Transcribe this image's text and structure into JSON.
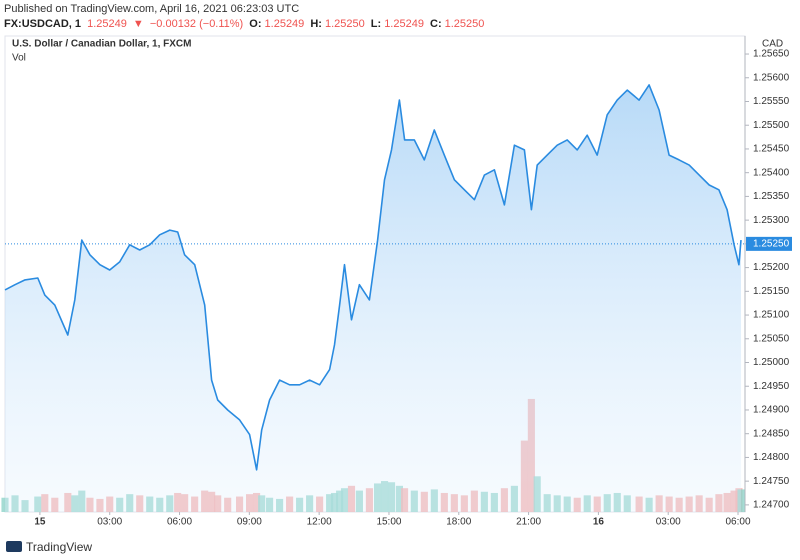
{
  "published": "Published on TradingView.com, April 16, 2021 06:23:03 UTC",
  "symbol_line": {
    "symbol": "FX:USDCAD, 1",
    "last": "1.25249",
    "arrow": "▼",
    "change": "−0.00132 (−0.11%)",
    "o_label": "O:",
    "o": "1.25249",
    "h_label": "H:",
    "h": "1.25250",
    "l_label": "L:",
    "l": "1.25249",
    "c_label": "C:",
    "c": "1.25250"
  },
  "footer": "TradingView",
  "chart_data": {
    "type": "area",
    "title": "U.S. Dollar / Canadian Dollar, 1, FXCM",
    "volume_label": "Vol",
    "currency": "CAD",
    "x": [
      -1.5,
      -1.07,
      -0.64,
      -0.09,
      0.21,
      0.64,
      1.2,
      1.5,
      1.8,
      2.15,
      2.58,
      3.0,
      3.43,
      3.86,
      4.29,
      4.72,
      5.15,
      5.58,
      5.92,
      6.22,
      6.65,
      7.08,
      7.38,
      7.64,
      8.07,
      8.58,
      9.01,
      9.31,
      9.53,
      9.87,
      10.3,
      10.73,
      11.16,
      11.59,
      12.02,
      12.45,
      12.66,
      12.88,
      13.09,
      13.39,
      13.73,
      14.16,
      14.51,
      14.81,
      15.11,
      15.45,
      15.67,
      16.09,
      16.52,
      16.95,
      17.38,
      17.81,
      18.24,
      18.67,
      19.1,
      19.53,
      19.96,
      20.39,
      20.82,
      21.12,
      21.37,
      21.8,
      22.23,
      22.66,
      23.09,
      23.52,
      23.95,
      24.38,
      24.81,
      25.24,
      25.75,
      26.18,
      26.61,
      27.04,
      27.47,
      27.9,
      28.33,
      28.76,
      29.18,
      29.53,
      29.83,
      30.04,
      30.13
    ],
    "series": [
      {
        "name": "USDCAD",
        "color": "#2a8be0",
        "values": [
          1.25153,
          1.25164,
          1.25174,
          1.25178,
          1.25142,
          1.25121,
          1.25058,
          1.25132,
          1.25258,
          1.25227,
          1.25206,
          1.25195,
          1.25212,
          1.25248,
          1.25237,
          1.25248,
          1.25269,
          1.25279,
          1.25275,
          1.25227,
          1.25206,
          1.25121,
          1.24963,
          1.24921,
          1.249,
          1.24879,
          1.24848,
          1.24774,
          1.24858,
          1.24921,
          1.24963,
          1.24953,
          1.24953,
          1.24963,
          1.24953,
          1.24985,
          1.25037,
          1.25121,
          1.25206,
          1.2509,
          1.25164,
          1.25132,
          1.25258,
          1.25385,
          1.25448,
          1.25553,
          1.25469,
          1.25469,
          1.25427,
          1.2549,
          1.25437,
          1.25385,
          1.25364,
          1.25343,
          1.25395,
          1.25406,
          1.25332,
          1.25458,
          1.25448,
          1.25322,
          1.25416,
          1.25437,
          1.25458,
          1.25469,
          1.25448,
          1.25479,
          1.25437,
          1.25522,
          1.25553,
          1.25574,
          1.25553,
          1.25585,
          1.25532,
          1.25437,
          1.25427,
          1.25416,
          1.25395,
          1.25374,
          1.25364,
          1.25322,
          1.25248,
          1.25206,
          1.25258
        ]
      },
      {
        "name": "Vol",
        "axis": "y2",
        "up_color": "#8fd3c9",
        "down_color": "#f4a9a7",
        "values": [
          12,
          14,
          10,
          13,
          15,
          12,
          16,
          14,
          18,
          12,
          11,
          13,
          12,
          15,
          14,
          13,
          12,
          14,
          16,
          15,
          13,
          18,
          17,
          14,
          12,
          13,
          15,
          16,
          14,
          12,
          11,
          13,
          12,
          14,
          13,
          15,
          16,
          18,
          20,
          22,
          18,
          20,
          24,
          26,
          25,
          22,
          20,
          18,
          17,
          19,
          16,
          15,
          14,
          18,
          17,
          16,
          20,
          22,
          60,
          95,
          30,
          15,
          14,
          13,
          12,
          14,
          13,
          15,
          16,
          14,
          13,
          12,
          14,
          13,
          12,
          13,
          14,
          12,
          15,
          16,
          18,
          20,
          19
        ]
      }
    ],
    "xlim": [
      -1.5,
      30.3
    ],
    "xticks": [
      {
        "value": 0,
        "label": "15"
      },
      {
        "value": 3,
        "label": "03:00"
      },
      {
        "value": 6,
        "label": "06:00"
      },
      {
        "value": 9,
        "label": "09:00"
      },
      {
        "value": 12,
        "label": "12:00"
      },
      {
        "value": 15,
        "label": "15:00"
      },
      {
        "value": 18,
        "label": "18:00"
      },
      {
        "value": 21,
        "label": "21:00"
      },
      {
        "value": 24,
        "label": "16"
      },
      {
        "value": 27,
        "label": "03:00"
      },
      {
        "value": 30,
        "label": "06:00"
      }
    ],
    "ylim": [
      1.24685,
      1.25688
    ],
    "yticks": [
      {
        "value": 1.2565,
        "label": "1.25650"
      },
      {
        "value": 1.256,
        "label": "1.25600"
      },
      {
        "value": 1.2555,
        "label": "1.25550"
      },
      {
        "value": 1.255,
        "label": "1.25500"
      },
      {
        "value": 1.2545,
        "label": "1.25450"
      },
      {
        "value": 1.254,
        "label": "1.25400"
      },
      {
        "value": 1.2535,
        "label": "1.25350"
      },
      {
        "value": 1.253,
        "label": "1.25300"
      },
      {
        "value": 1.2525,
        "label": "1.25250"
      },
      {
        "value": 1.252,
        "label": "1.25200"
      },
      {
        "value": 1.2515,
        "label": "1.25150"
      },
      {
        "value": 1.251,
        "label": "1.25100"
      },
      {
        "value": 1.2505,
        "label": "1.25050"
      },
      {
        "value": 1.25,
        "label": "1.25000"
      },
      {
        "value": 1.2495,
        "label": "1.24950"
      },
      {
        "value": 1.249,
        "label": "1.24900"
      },
      {
        "value": 1.2485,
        "label": "1.24850"
      },
      {
        "value": 1.248,
        "label": "1.24800"
      },
      {
        "value": 1.2475,
        "label": "1.24750"
      },
      {
        "value": 1.247,
        "label": "1.24700"
      }
    ],
    "y2lim": [
      0,
      400
    ],
    "last_price": {
      "value": 1.2525,
      "label": "1.25250"
    },
    "grid": false
  }
}
